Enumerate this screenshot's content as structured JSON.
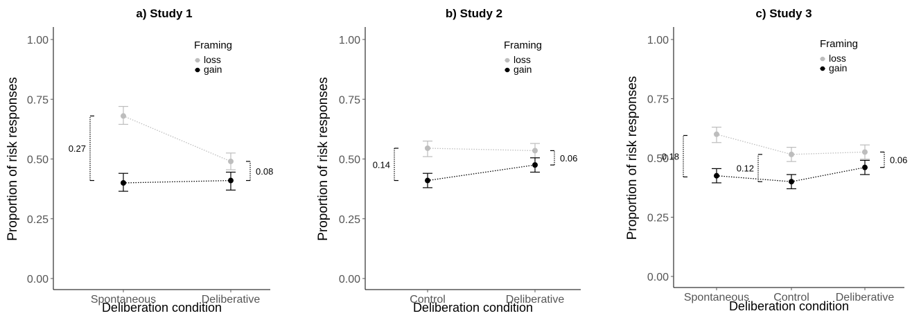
{
  "chart_data": [
    {
      "type": "line",
      "title": "a) Study 1",
      "xlabel": "Deliberation condition",
      "ylabel": "Proportion of risk responses",
      "categories": [
        "Spontaneous",
        "Deliberative"
      ],
      "ylim": [
        0,
        1
      ],
      "yticks": [
        "0.00",
        "0.25",
        "0.50",
        "0.75",
        "1.00"
      ],
      "legend": {
        "title": "Framing",
        "position": "top-right"
      },
      "series": [
        {
          "name": "loss",
          "color": "#bdbdbd",
          "values": [
            0.68,
            0.49
          ],
          "err_low": [
            0.645,
            0.455
          ],
          "err_high": [
            0.72,
            0.525
          ]
        },
        {
          "name": "gain",
          "color": "#000000",
          "values": [
            0.4,
            0.41
          ],
          "err_low": [
            0.365,
            0.37
          ],
          "err_high": [
            0.44,
            0.445
          ]
        }
      ],
      "annotations": [
        {
          "label": "0.27",
          "category": 0,
          "side": "left",
          "from": 0.41,
          "to": 0.68
        },
        {
          "label": "0.08",
          "category": 1,
          "side": "right",
          "from": 0.41,
          "to": 0.49
        }
      ]
    },
    {
      "type": "line",
      "title": "b) Study 2",
      "xlabel": "Deliberation condition",
      "ylabel": "Proportion of risk responses",
      "categories": [
        "Control",
        "Deliberative"
      ],
      "ylim": [
        0,
        1
      ],
      "yticks": [
        "0.00",
        "0.25",
        "0.50",
        "0.75",
        "1.00"
      ],
      "legend": {
        "title": "Framing",
        "position": "top-right"
      },
      "series": [
        {
          "name": "loss",
          "color": "#bdbdbd",
          "values": [
            0.545,
            0.535
          ],
          "err_low": [
            0.51,
            0.505
          ],
          "err_high": [
            0.575,
            0.565
          ]
        },
        {
          "name": "gain",
          "color": "#000000",
          "values": [
            0.41,
            0.475
          ],
          "err_low": [
            0.38,
            0.445
          ],
          "err_high": [
            0.44,
            0.505
          ]
        }
      ],
      "annotations": [
        {
          "label": "0.14",
          "category": 0,
          "side": "left",
          "from": 0.41,
          "to": 0.545
        },
        {
          "label": "0.06",
          "category": 1,
          "side": "right",
          "from": 0.475,
          "to": 0.535
        }
      ]
    },
    {
      "type": "line",
      "title": "c) Study 3",
      "xlabel": "Deliberation condition",
      "ylabel": "Proportion of risk responses",
      "categories": [
        "Spontaneous",
        "Control",
        "Deliberative"
      ],
      "ylim": [
        0,
        1
      ],
      "yticks": [
        "0.00",
        "0.25",
        "0.50",
        "0.75",
        "1.00"
      ],
      "legend": {
        "title": "Framing",
        "position": "top-right"
      },
      "series": [
        {
          "name": "loss",
          "color": "#bdbdbd",
          "values": [
            0.6,
            0.515,
            0.525
          ],
          "err_low": [
            0.565,
            0.485,
            0.495
          ],
          "err_high": [
            0.63,
            0.545,
            0.555
          ]
        },
        {
          "name": "gain",
          "color": "#000000",
          "values": [
            0.425,
            0.4,
            0.46
          ],
          "err_low": [
            0.395,
            0.37,
            0.43
          ],
          "err_high": [
            0.455,
            0.43,
            0.49
          ]
        }
      ],
      "annotations": [
        {
          "label": "0.18",
          "category": 0,
          "side": "left",
          "from": 0.42,
          "to": 0.595
        },
        {
          "label": "0.12",
          "category": 1,
          "side": "left",
          "from": 0.4,
          "to": 0.515
        },
        {
          "label": "0.06",
          "category": 2,
          "side": "right",
          "from": 0.46,
          "to": 0.525
        }
      ]
    }
  ]
}
